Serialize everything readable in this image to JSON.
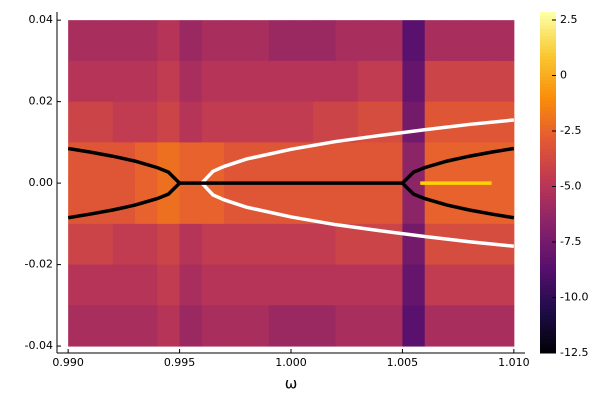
{
  "chart_data": {
    "type": "heatmap",
    "xlabel": "ω",
    "colormap": "inferno",
    "xbins": [
      0.99,
      0.991,
      0.992,
      0.993,
      0.994,
      0.995,
      0.996,
      0.997,
      0.998,
      0.999,
      1.0,
      1.001,
      1.002,
      1.003,
      1.004,
      1.005,
      1.006,
      1.007,
      1.008,
      1.009,
      1.01
    ],
    "ybins": [
      0.04,
      0.03,
      0.02,
      0.01,
      0.0,
      -0.01,
      -0.02,
      -0.03,
      -0.04
    ],
    "z": [
      [
        -5.5,
        -5.5,
        -5.5,
        -5.5,
        -5,
        -6,
        -5.5,
        -5.5,
        -5.5,
        -6,
        -6,
        -6,
        -5.5,
        -5.5,
        -5.5,
        -8.5,
        -5.5,
        -5.5,
        -5.5,
        -5.5
      ],
      [
        -5,
        -5,
        -5,
        -5,
        -4.5,
        -5.5,
        -5,
        -5,
        -5,
        -5,
        -5,
        -5,
        -5,
        -4.5,
        -4.5,
        -8,
        -4,
        -4,
        -4,
        -4
      ],
      [
        -4,
        -4,
        -4.5,
        -4.5,
        -4,
        -5,
        -4.5,
        -4.5,
        -4.5,
        -4.5,
        -4.5,
        -4,
        -4,
        -3.5,
        -3.5,
        -7.5,
        -3,
        -3,
        -3,
        -3
      ],
      [
        -3,
        -3,
        -3,
        -2.5,
        -2,
        -2.5,
        -2.5,
        -3,
        -3,
        -3,
        -3,
        -3,
        -3,
        -3,
        -3,
        -6.5,
        -2.5,
        -2.5,
        -2.5,
        -2.5
      ],
      [
        -3,
        -3,
        -3,
        -2.5,
        -2,
        -2.5,
        -2.5,
        -3,
        -3,
        -3,
        -3,
        -3,
        -3,
        -3,
        -3,
        -6.5,
        -2.5,
        -2.5,
        -2.5,
        -2.5
      ],
      [
        -4,
        -4,
        -4.5,
        -4.5,
        -4,
        -5,
        -4.5,
        -4.5,
        -4.5,
        -4.5,
        -4.5,
        -4.5,
        -4,
        -4,
        -4,
        -7.5,
        -3.5,
        -3.5,
        -3.5,
        -3.5
      ],
      [
        -5,
        -5,
        -5,
        -5,
        -4.5,
        -5.5,
        -5,
        -5,
        -5,
        -5,
        -5,
        -5,
        -5,
        -5,
        -5,
        -8,
        -4.5,
        -4.5,
        -4.5,
        -4.5
      ],
      [
        -5.5,
        -5.5,
        -5.5,
        -5.5,
        -5,
        -6,
        -5.5,
        -5.5,
        -5.5,
        -6,
        -6,
        -6,
        -5.5,
        -5.5,
        -5.5,
        -8.5,
        -5.5,
        -5.5,
        -5.5,
        -5.5
      ]
    ],
    "zlim": [
      -12.5,
      2.86
    ],
    "zticks": [
      2.5,
      0,
      -2.5,
      {
        "value": -5,
        "label": "-5.0"
      },
      -7.5,
      {
        "value": -10,
        "label": "-10.0"
      },
      -12.5
    ],
    "xlim": [
      0.9895,
      1.0105
    ],
    "xticks": [
      {
        "value": 0.99,
        "label": "0.990"
      },
      0.995,
      {
        "value": 1.0,
        "label": "1.000"
      },
      1.005,
      {
        "value": 1.01,
        "label": "1.010"
      }
    ],
    "ylim": [
      -0.0417,
      0.042
    ],
    "yticks": [
      0.04,
      0.02,
      {
        "value": 0,
        "label": "0.00"
      },
      -0.02,
      -0.04
    ],
    "series": [
      {
        "color": "#000000",
        "x": [
          0.99,
          0.991,
          0.992,
          0.993,
          0.994,
          0.9945,
          0.995
        ],
        "values": [
          0.0085,
          0.0076,
          0.0066,
          0.0054,
          0.0038,
          0.0027,
          0
        ]
      },
      {
        "color": "#000000",
        "x": [
          0.99,
          0.991,
          0.992,
          0.993,
          0.994,
          0.9945,
          0.995
        ],
        "values": [
          -0.0085,
          -0.0076,
          -0.0066,
          -0.0054,
          -0.0038,
          -0.0027,
          0
        ]
      },
      {
        "color": "#ffffff",
        "x": [
          0.996,
          0.9965,
          0.997,
          0.998,
          1.0,
          1.002,
          1.004,
          1.006,
          1.008,
          1.01
        ],
        "values": [
          0,
          0.0029,
          0.0041,
          0.0059,
          0.0083,
          0.0102,
          0.0117,
          0.0131,
          0.0144,
          0.0155
        ]
      },
      {
        "color": "#ffffff",
        "x": [
          0.996,
          0.9965,
          0.997,
          0.998,
          1.0,
          1.002,
          1.004,
          1.006,
          1.008,
          1.01
        ],
        "values": [
          0,
          -0.0029,
          -0.0041,
          -0.0059,
          -0.0083,
          -0.0102,
          -0.0117,
          -0.0131,
          -0.0144,
          -0.0155
        ]
      },
      {
        "color": "#000000",
        "x": [
          0.995,
          1.005
        ],
        "values": [
          0,
          0
        ]
      },
      {
        "color": "#000000",
        "x": [
          1.005,
          1.0055,
          1.006,
          1.007,
          1.008,
          1.009,
          1.01
        ],
        "values": [
          0,
          0.0027,
          0.0038,
          0.0054,
          0.0066,
          0.0076,
          0.0085
        ]
      },
      {
        "color": "#000000",
        "x": [
          1.005,
          1.0055,
          1.006,
          1.007,
          1.008,
          1.009,
          1.01
        ],
        "values": [
          0,
          -0.0027,
          -0.0038,
          -0.0054,
          -0.0066,
          -0.0076,
          -0.0085
        ]
      },
      {
        "color": "#ffd200",
        "x": [
          1.0058,
          1.009
        ],
        "values": [
          0,
          0
        ]
      }
    ]
  }
}
